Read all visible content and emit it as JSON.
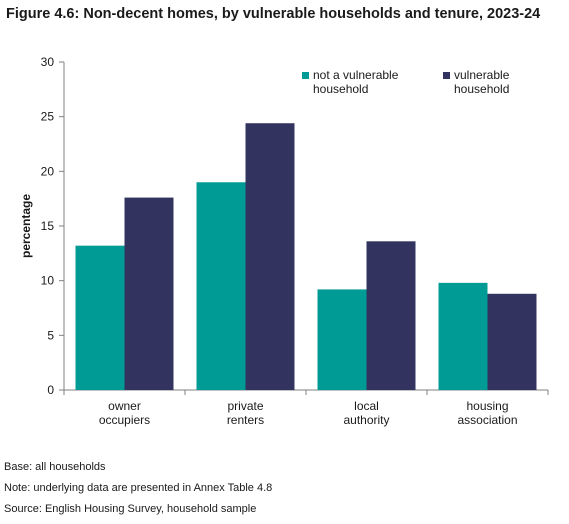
{
  "figure_title": "Figure 4.6: Non-decent homes, by vulnerable households and tenure, 2023-24",
  "chart_data": {
    "type": "bar",
    "title": "Figure 4.6: Non-decent homes, by vulnerable households and tenure, 2023-24",
    "xlabel": "",
    "ylabel": "percentage",
    "ylim": [
      0,
      30
    ],
    "yticks": [
      0,
      5,
      10,
      15,
      20,
      25,
      30
    ],
    "categories": [
      [
        "owner",
        "occupiers"
      ],
      [
        "private",
        "renters"
      ],
      [
        "local",
        "authority"
      ],
      [
        "housing",
        "association"
      ]
    ],
    "series": [
      {
        "name": [
          "not a vulnerable",
          "household"
        ],
        "color": "#009b94",
        "values": [
          13.2,
          19.0,
          9.2,
          9.8
        ]
      },
      {
        "name": [
          "vulnerable",
          "household"
        ],
        "color": "#33335f",
        "values": [
          17.6,
          24.4,
          13.6,
          8.8
        ]
      }
    ],
    "grid": false,
    "legend_position": "top-right"
  },
  "footnotes": {
    "base": "Base: all households",
    "note": "Note: underlying data are presented in Annex Table 4.8",
    "source": "Source: English Housing Survey, household sample"
  }
}
